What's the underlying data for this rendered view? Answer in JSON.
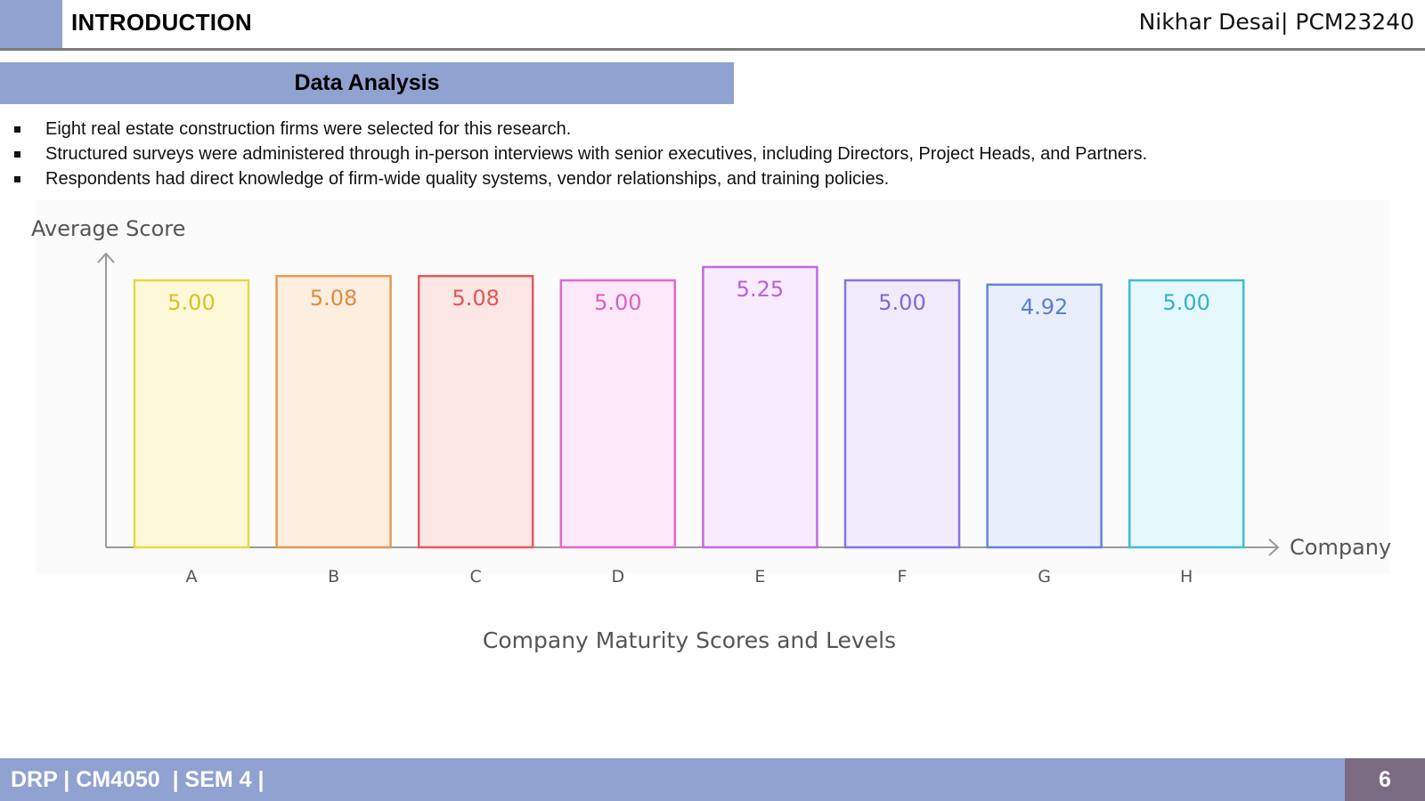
{
  "header": {
    "title": "INTRODUCTION",
    "author": "Nikhar Desai| PCM23240"
  },
  "section": {
    "title": "Data Analysis"
  },
  "bullets": [
    "Eight real estate construction firms were selected for this research.",
    "Structured surveys were administered through in-person interviews with senior executives, including Directors, Project Heads, and Partners.",
    "Respondents had direct knowledge of firm-wide quality systems, vendor relationships, and training policies."
  ],
  "chart_data": {
    "type": "bar",
    "title": "Company Maturity Scores and Levels",
    "xlabel": "Company",
    "ylabel": "Average Score",
    "categories": [
      "A",
      "B",
      "C",
      "D",
      "E",
      "F",
      "G",
      "H"
    ],
    "values": [
      5.0,
      5.08,
      5.08,
      5.0,
      5.25,
      5.0,
      4.92,
      5.0
    ],
    "value_labels": [
      "5.00",
      "5.08",
      "5.08",
      "5.00",
      "5.25",
      "5.00",
      "4.92",
      "5.00"
    ],
    "colors": [
      {
        "stroke": "#e6d84a",
        "fill": "#fdf9d6",
        "text": "#d6c22a"
      },
      {
        "stroke": "#e59a52",
        "fill": "#fdeee0",
        "text": "#e08b3e"
      },
      {
        "stroke": "#e25c5c",
        "fill": "#fde6e6",
        "text": "#e05656"
      },
      {
        "stroke": "#e06ad0",
        "fill": "#fde8f9",
        "text": "#d860c8"
      },
      {
        "stroke": "#c46ae0",
        "fill": "#f7ebfd",
        "text": "#bb60db"
      },
      {
        "stroke": "#8a72e0",
        "fill": "#f0ecfd",
        "text": "#7f67dc"
      },
      {
        "stroke": "#5f86d8",
        "fill": "#e9eefc",
        "text": "#5a7fd3"
      },
      {
        "stroke": "#3fbcd6",
        "fill": "#e5f8fc",
        "text": "#34b1cc"
      }
    ],
    "grid": false,
    "legend": "none"
  },
  "footer": {
    "text": "DRP | CM4050  | SEM 4 |",
    "page": "6"
  }
}
